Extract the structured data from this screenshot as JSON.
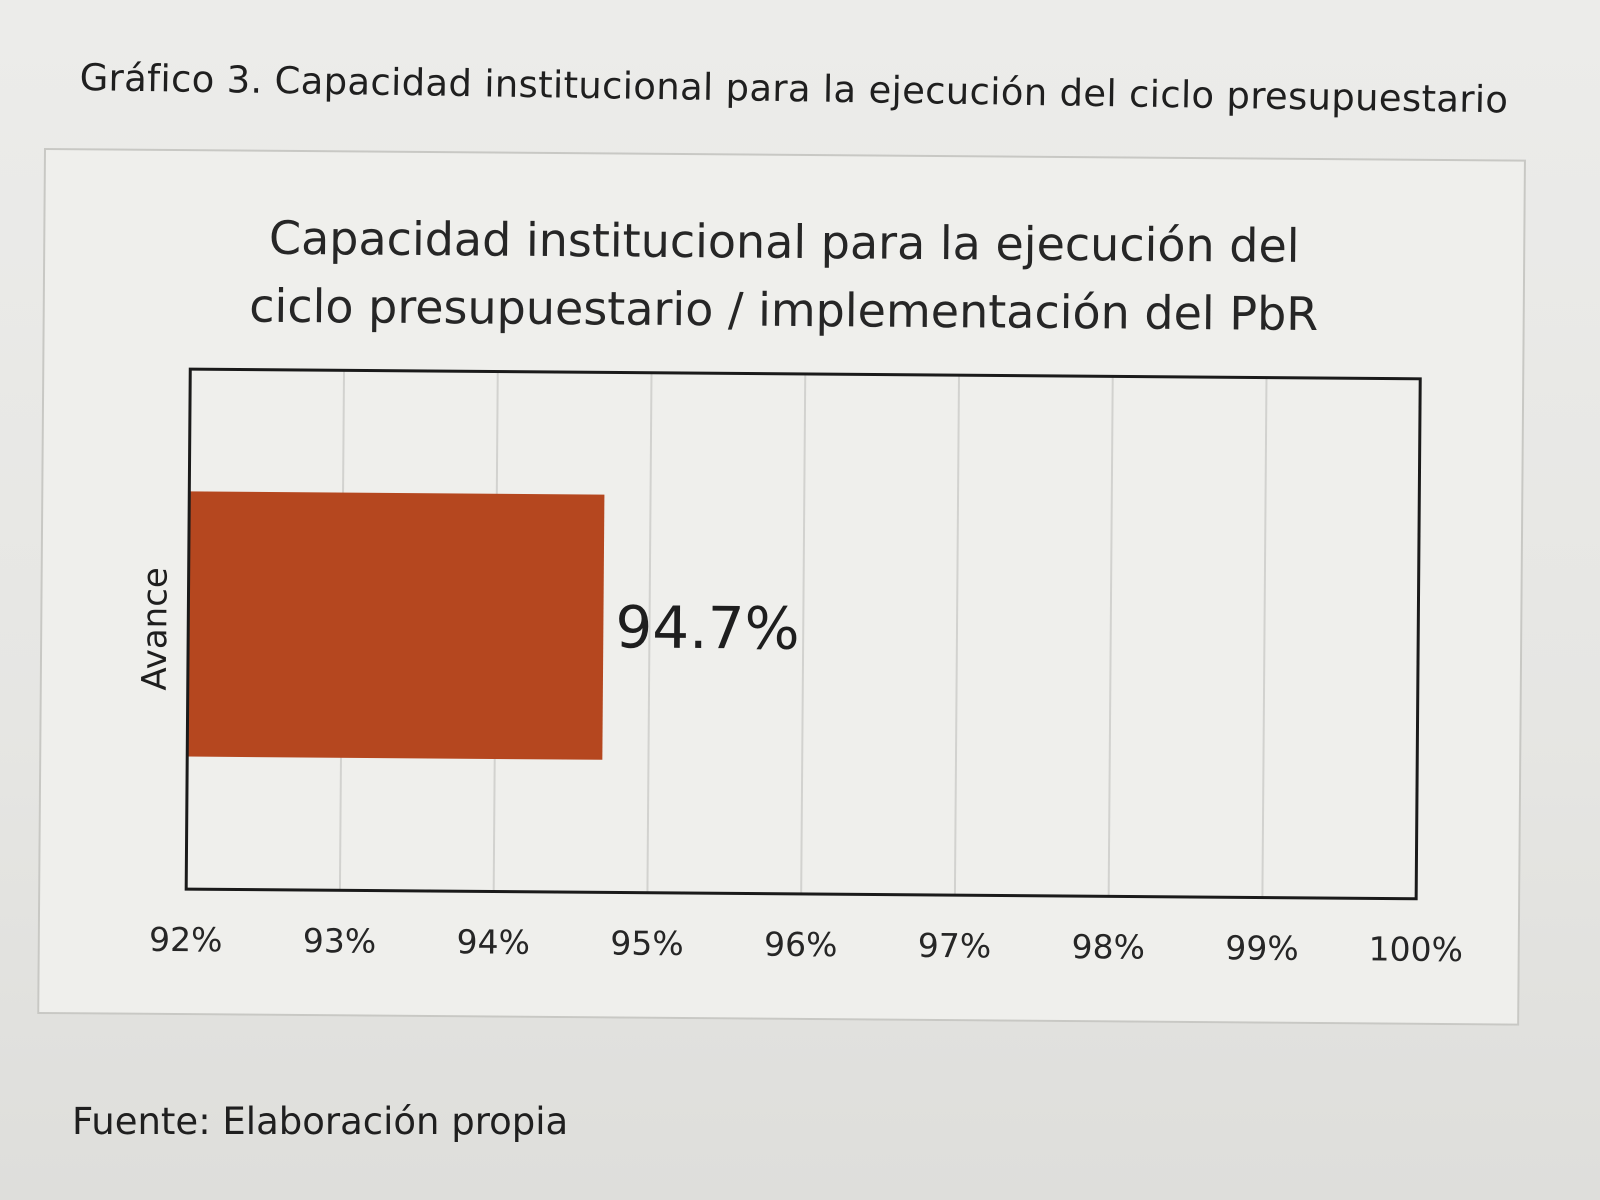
{
  "caption": "Gráfico 3. Capacidad institucional para la ejecución del ciclo presupuestario",
  "source": "Fuente: Elaboración propia",
  "colors": {
    "bar": "#b5471f",
    "grid": "#d2d2cf",
    "plot_border": "#1a1a1a"
  },
  "chart_data": {
    "type": "bar",
    "orientation": "horizontal",
    "title_lines": [
      "Capacidad institucional para la ejecución del",
      "ciclo presupuestario / implementación del PbR"
    ],
    "categories": [
      "Avance"
    ],
    "values": [
      94.7
    ],
    "data_labels": [
      "94.7%"
    ],
    "xlim": [
      92,
      100
    ],
    "xticks": [
      92,
      93,
      94,
      95,
      96,
      97,
      98,
      99,
      100
    ],
    "xtick_labels": [
      "92%",
      "93%",
      "94%",
      "95%",
      "96%",
      "97%",
      "98%",
      "99%",
      "100%"
    ],
    "ylabel": "Avance",
    "xlabel": "",
    "grid": "vertical"
  }
}
